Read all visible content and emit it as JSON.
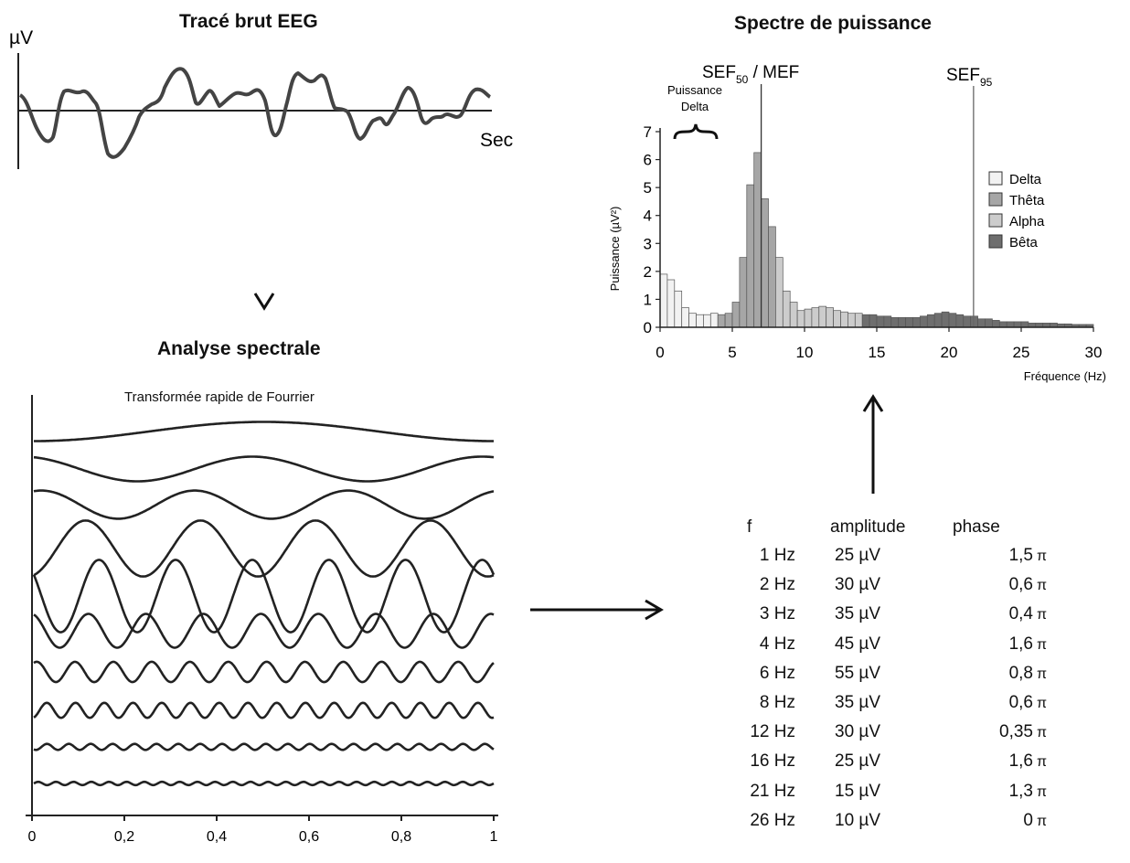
{
  "raw_eeg": {
    "title": "Tracé brut EEG",
    "y_unit": "µV",
    "x_unit": "Sec"
  },
  "spectral_analysis": {
    "title": "Analyse spectrale",
    "subtitle": "Transformée rapide de Fourrier",
    "x_ticks": [
      "0",
      "0,2",
      "0,4",
      "0,6",
      "0,8",
      "1"
    ]
  },
  "fft_table": {
    "headers": {
      "f": "f",
      "amplitude": "amplitude",
      "phase": "phase"
    },
    "phase_symbol": "π",
    "rows": [
      {
        "f": "1 Hz",
        "amplitude": "25 µV",
        "phase": "1,5"
      },
      {
        "f": "2 Hz",
        "amplitude": "30 µV",
        "phase": "0,6"
      },
      {
        "f": "3 Hz",
        "amplitude": "35 µV",
        "phase": "0,4"
      },
      {
        "f": "4 Hz",
        "amplitude": "45 µV",
        "phase": "1,6"
      },
      {
        "f": "6 Hz",
        "amplitude": "55 µV",
        "phase": "0,8"
      },
      {
        "f": "8 Hz",
        "amplitude": "35 µV",
        "phase": "0,6"
      },
      {
        "f": "12 Hz",
        "amplitude": "30 µV",
        "phase": "0,35"
      },
      {
        "f": "16 Hz",
        "amplitude": "25 µV",
        "phase": "1,6"
      },
      {
        "f": "21 Hz",
        "amplitude": "15 µV",
        "phase": "1,3"
      },
      {
        "f": "26 Hz",
        "amplitude": "10 µV",
        "phase": "0"
      }
    ]
  },
  "power_spectrum": {
    "title": "Spectre de puissance",
    "sef50_label": "SEF",
    "sef50_sub": "50",
    "sef50_suffix": " / MEF",
    "sef95_label": "SEF",
    "sef95_sub": "95",
    "delta_power_label_line1": "Puissance",
    "delta_power_label_line2": "Delta",
    "ylabel": "Puissance (µV²)",
    "xlabel": "Fréquence (Hz)",
    "x_ticks": [
      "0",
      "5",
      "10",
      "15",
      "20",
      "25",
      "30"
    ],
    "y_ticks": [
      "0",
      "1",
      "2",
      "3",
      "4",
      "5",
      "6",
      "7"
    ],
    "legend": [
      "Delta",
      "Thêta",
      "Alpha",
      "Bêta"
    ],
    "colors": {
      "Delta": "#f2f2f2",
      "Thêta": "#a6a6a6",
      "Alpha": "#cccccc",
      "Bêta": "#6e6e6e"
    }
  },
  "chart_data": {
    "type": "bar",
    "xlabel": "Fréquence (Hz)",
    "ylabel": "Puissance (µV²)",
    "xlim": [
      0,
      30
    ],
    "ylim": [
      0,
      7
    ],
    "bar_width_hz": 0.5,
    "sef50_hz": 7,
    "sef95_hz": 21.7,
    "bands": [
      {
        "name": "Delta",
        "x": [
          0,
          0.5,
          1,
          1.5,
          2,
          2.5,
          3,
          3.5
        ],
        "values": [
          1.9,
          1.7,
          1.3,
          0.7,
          0.5,
          0.45,
          0.45,
          0.5
        ]
      },
      {
        "name": "Thêta",
        "x": [
          4,
          4.5,
          5,
          5.5,
          6,
          6.5,
          7,
          7.5
        ],
        "values": [
          0.45,
          0.5,
          0.9,
          2.5,
          5.1,
          6.25,
          4.6,
          3.6
        ]
      },
      {
        "name": "Alpha",
        "x": [
          8,
          8.5,
          9,
          9.5,
          10,
          10.5,
          11,
          11.5,
          12,
          12.5,
          13,
          13.5
        ],
        "values": [
          2.5,
          1.3,
          0.9,
          0.6,
          0.65,
          0.7,
          0.75,
          0.7,
          0.6,
          0.55,
          0.5,
          0.5
        ]
      },
      {
        "name": "Bêta",
        "x": [
          14,
          14.5,
          15,
          15.5,
          16,
          16.5,
          17,
          17.5,
          18,
          18.5,
          19,
          19.5,
          20,
          20.5,
          21,
          21.5,
          22,
          22.5,
          23,
          23.5,
          24,
          24.5,
          25,
          25.5,
          26,
          26.5,
          27,
          27.5,
          28,
          28.5,
          29,
          29.5
        ],
        "values": [
          0.45,
          0.45,
          0.4,
          0.4,
          0.35,
          0.35,
          0.35,
          0.35,
          0.4,
          0.45,
          0.5,
          0.55,
          0.5,
          0.45,
          0.4,
          0.4,
          0.3,
          0.3,
          0.25,
          0.2,
          0.2,
          0.2,
          0.2,
          0.15,
          0.15,
          0.15,
          0.15,
          0.12,
          0.12,
          0.1,
          0.1,
          0.1
        ]
      }
    ]
  }
}
